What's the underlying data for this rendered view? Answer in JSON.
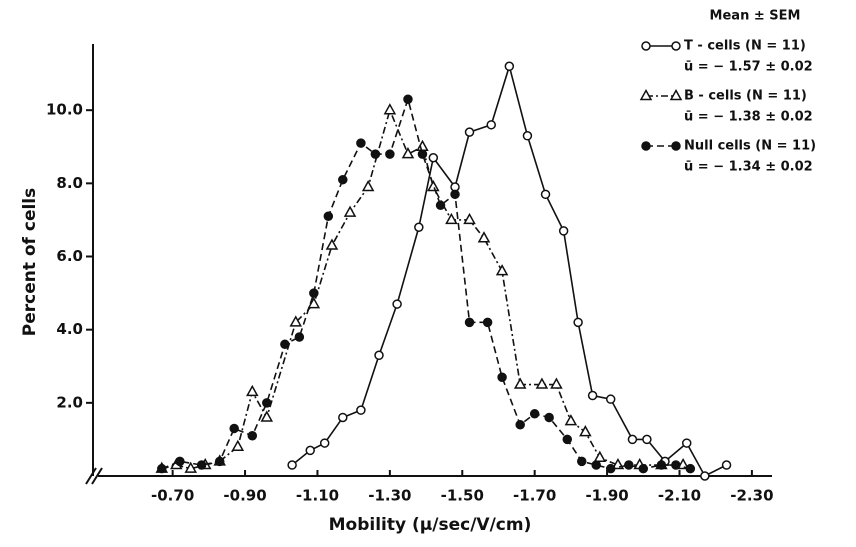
{
  "chart_data": {
    "type": "line",
    "x_label": "Mobility (μ/sec/V/cm)",
    "y_label": "Percent of cells",
    "legend_title": "Mean ± SEM",
    "legend_position": "upper right",
    "xlim": [
      -0.48,
      -2.35
    ],
    "ylim": [
      0,
      11.7
    ],
    "xticks": [
      {
        "value": -0.7,
        "label": "-0.70"
      },
      {
        "value": -0.9,
        "label": "-0.90"
      },
      {
        "value": -1.1,
        "label": "-1.10"
      },
      {
        "value": -1.3,
        "label": "-1.30"
      },
      {
        "value": -1.5,
        "label": "-1.50"
      },
      {
        "value": -1.7,
        "label": "-1.70"
      },
      {
        "value": -1.9,
        "label": "-1.90"
      },
      {
        "value": -2.1,
        "label": "-2.10"
      },
      {
        "value": -2.3,
        "label": "-2.30"
      }
    ],
    "yticks": [
      {
        "value": 2,
        "label": "2.0"
      },
      {
        "value": 4,
        "label": "4.0"
      },
      {
        "value": 6,
        "label": "6.0"
      },
      {
        "value": 8,
        "label": "8.0"
      },
      {
        "value": 10,
        "label": "10.0"
      }
    ],
    "series": [
      {
        "name": "T - cells (N = 11)",
        "stat": "ū = − 1.57 ± 0.02",
        "color": "#111111",
        "marker": "open-circle",
        "dash": "solid",
        "x": [
          -1.03,
          -1.08,
          -1.12,
          -1.17,
          -1.22,
          -1.27,
          -1.32,
          -1.38,
          -1.42,
          -1.48,
          -1.52,
          -1.58,
          -1.63,
          -1.68,
          -1.73,
          -1.78,
          -1.82,
          -1.86,
          -1.91,
          -1.97,
          -2.01,
          -2.06,
          -2.12,
          -2.17,
          -2.23
        ],
        "values": [
          0.3,
          0.7,
          0.9,
          1.6,
          1.8,
          3.3,
          4.7,
          6.8,
          8.7,
          7.9,
          9.4,
          9.6,
          11.2,
          9.3,
          7.7,
          6.7,
          4.2,
          2.2,
          2.1,
          1.0,
          1.0,
          0.4,
          0.9,
          0.0,
          0.3
        ]
      },
      {
        "name": "B - cells (N = 11)",
        "stat": "ū = − 1.38 ± 0.02",
        "color": "#111111",
        "marker": "open-triangle",
        "dash": "dash-dot",
        "x": [
          -0.67,
          -0.71,
          -0.75,
          -0.79,
          -0.83,
          -0.88,
          -0.92,
          -0.96,
          -1.04,
          -1.09,
          -1.14,
          -1.19,
          -1.24,
          -1.3,
          -1.35,
          -1.39,
          -1.42,
          -1.47,
          -1.52,
          -1.56,
          -1.61,
          -1.66,
          -1.72,
          -1.76,
          -1.8,
          -1.84,
          -1.88,
          -1.93,
          -1.99,
          -2.05,
          -2.11
        ],
        "values": [
          0.2,
          0.3,
          0.2,
          0.3,
          0.4,
          0.8,
          2.3,
          1.6,
          4.2,
          4.7,
          6.3,
          7.2,
          7.9,
          10.0,
          8.8,
          9.0,
          7.9,
          7.0,
          7.0,
          6.5,
          5.6,
          2.5,
          2.5,
          2.5,
          1.5,
          1.2,
          0.5,
          0.3,
          0.3,
          0.3,
          0.3
        ]
      },
      {
        "name": "Null cells (N = 11)",
        "stat": "ū = − 1.34 ± 0.02",
        "color": "#111111",
        "marker": "filled-circle",
        "dash": "dashed",
        "x": [
          -0.67,
          -0.72,
          -0.78,
          -0.83,
          -0.87,
          -0.92,
          -0.96,
          -1.01,
          -1.05,
          -1.09,
          -1.13,
          -1.17,
          -1.22,
          -1.26,
          -1.3,
          -1.35,
          -1.39,
          -1.44,
          -1.48,
          -1.52,
          -1.57,
          -1.61,
          -1.66,
          -1.7,
          -1.74,
          -1.79,
          -1.83,
          -1.87,
          -1.91,
          -1.96,
          -2.0,
          -2.05,
          -2.09,
          -2.13
        ],
        "values": [
          0.2,
          0.4,
          0.3,
          0.4,
          1.3,
          1.1,
          2.0,
          3.6,
          3.8,
          5.0,
          7.1,
          8.1,
          9.1,
          8.8,
          8.8,
          10.3,
          8.8,
          7.4,
          7.7,
          4.2,
          4.2,
          2.7,
          1.4,
          1.7,
          1.6,
          1.0,
          0.4,
          0.3,
          0.2,
          0.3,
          0.2,
          0.3,
          0.3,
          0.2
        ]
      }
    ]
  }
}
